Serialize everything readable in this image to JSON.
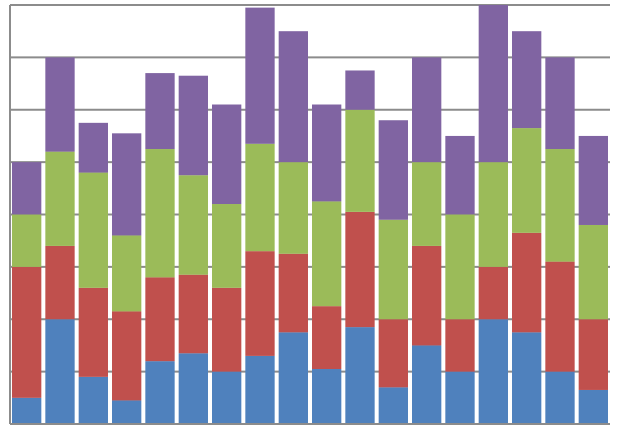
{
  "chart_data": {
    "type": "bar",
    "stacked": true,
    "orientation": "vertical",
    "grid": true,
    "legend": "none",
    "title": "",
    "xlabel": "",
    "ylabel": "",
    "ylim": [
      0,
      8
    ],
    "categories": [
      "",
      "",
      "",
      "",
      "",
      "",
      "",
      "",
      "",
      "",
      "",
      "",
      "",
      "",
      "",
      "",
      "",
      ""
    ],
    "series": [
      {
        "color": "#4f81bd",
        "values": [
          0.5,
          2.0,
          0.9,
          0.45,
          1.2,
          1.35,
          1.0,
          1.3,
          1.75,
          1.05,
          1.85,
          0.7,
          1.5,
          1.0,
          2.0,
          1.75,
          1.0,
          0.65
        ]
      },
      {
        "color": "#c0504d",
        "values": [
          2.5,
          1.4,
          1.7,
          1.7,
          1.6,
          1.5,
          1.6,
          2.0,
          1.5,
          1.2,
          2.2,
          1.3,
          1.9,
          1.0,
          1.0,
          1.9,
          2.1,
          1.35
        ]
      },
      {
        "color": "#9bbb59",
        "values": [
          1.0,
          1.8,
          2.2,
          1.45,
          2.45,
          1.9,
          1.6,
          2.05,
          1.75,
          2.0,
          1.95,
          1.9,
          1.6,
          2.0,
          2.0,
          2.0,
          2.15,
          1.8
        ]
      },
      {
        "color": "#8064a2",
        "values": [
          1.0,
          1.8,
          0.95,
          1.95,
          1.45,
          1.9,
          1.9,
          2.6,
          2.5,
          1.85,
          0.75,
          1.9,
          2.0,
          1.5,
          3.0,
          1.85,
          1.75,
          1.7
        ]
      }
    ]
  }
}
